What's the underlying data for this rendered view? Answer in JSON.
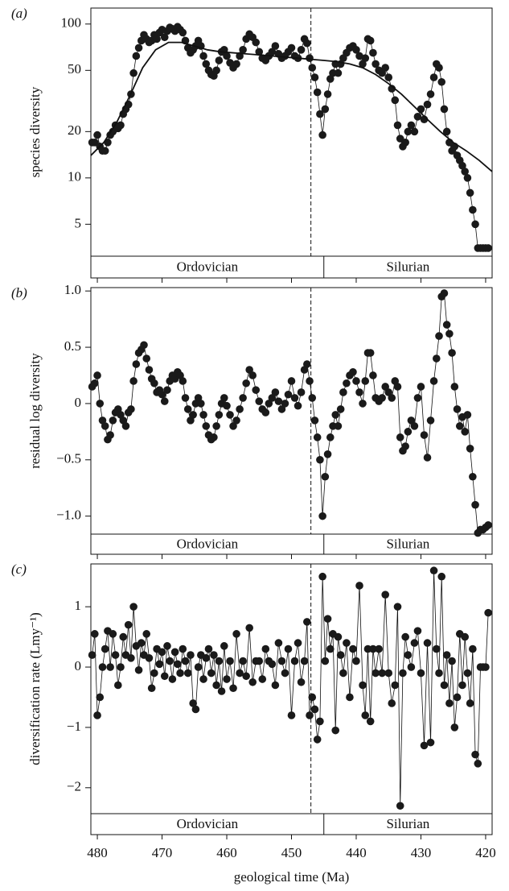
{
  "chart_data": [
    {
      "type": "line",
      "panel_label": "(a)",
      "ylabel": "species diversity",
      "log": true,
      "ylim": [
        3.1,
        127
      ],
      "yticks": [
        5,
        10,
        20,
        50,
        100
      ],
      "xlim": [
        481,
        419
      ],
      "vline": 447,
      "periods": [
        "Ordovician",
        "Silurian"
      ],
      "period_boundary": 445,
      "x": [
        480.8,
        480.4,
        480,
        479.6,
        479.2,
        478.8,
        478.4,
        478,
        477.6,
        477.2,
        476.8,
        476.4,
        476,
        475.6,
        475.2,
        474.8,
        474.4,
        474,
        473.6,
        473.2,
        472.8,
        472.4,
        472,
        471.6,
        471.2,
        470.8,
        470.4,
        470,
        469.6,
        469.2,
        468.8,
        468.4,
        468,
        467.6,
        467.2,
        466.8,
        466.4,
        466,
        465.6,
        465.2,
        464.8,
        464.4,
        464,
        463.6,
        463.2,
        462.8,
        462.4,
        462,
        461.6,
        461.2,
        460.8,
        460.4,
        460,
        459.5,
        459,
        458.5,
        458,
        457.5,
        457,
        456.5,
        456,
        455.5,
        455,
        454.5,
        454,
        453.5,
        453,
        452.5,
        452,
        451.5,
        451,
        450.5,
        450,
        449.5,
        449,
        448.5,
        448,
        447.6,
        447.2,
        446.8,
        446.4,
        446,
        445.6,
        445.2,
        444.8,
        444.4,
        444,
        443.6,
        443.2,
        442.8,
        442.4,
        442,
        441.5,
        441,
        440.5,
        440,
        439.5,
        439,
        438.6,
        438.2,
        437.8,
        437.4,
        437,
        436.5,
        436,
        435.5,
        435,
        434.5,
        434,
        433.6,
        433.2,
        432.8,
        432.4,
        432,
        431.5,
        431,
        430.5,
        430,
        429.5,
        429,
        428.5,
        428,
        427.6,
        427.2,
        426.8,
        426.4,
        426,
        425.6,
        425.2,
        424.8,
        424.4,
        424,
        423.6,
        423.2,
        422.8,
        422.4,
        422,
        421.6,
        421.2,
        420.8,
        420.4,
        420,
        419.6
      ],
      "values": [
        17,
        17,
        19,
        16,
        15,
        15,
        17,
        19,
        20,
        22,
        21,
        22,
        26,
        28,
        30,
        35,
        48,
        62,
        70,
        78,
        85,
        80,
        76,
        78,
        85,
        80,
        88,
        92,
        82,
        90,
        95,
        93,
        90,
        96,
        92,
        88,
        78,
        70,
        65,
        68,
        72,
        78,
        72,
        62,
        55,
        50,
        47,
        46,
        50,
        58,
        66,
        68,
        62,
        56,
        52,
        55,
        62,
        68,
        80,
        86,
        82,
        76,
        66,
        60,
        58,
        62,
        66,
        72,
        64,
        60,
        62,
        66,
        70,
        62,
        60,
        68,
        80,
        75,
        60,
        52,
        45,
        36,
        26,
        19,
        28,
        35,
        44,
        48,
        55,
        48,
        55,
        60,
        65,
        70,
        72,
        68,
        62,
        55,
        60,
        80,
        78,
        65,
        55,
        50,
        48,
        52,
        45,
        38,
        32,
        22,
        18,
        16,
        17,
        20,
        22,
        20,
        25,
        28,
        24,
        30,
        35,
        45,
        55,
        52,
        42,
        28,
        20,
        17,
        15,
        16,
        14,
        13,
        12,
        11,
        10,
        8,
        6.2,
        5,
        3.5,
        3.5,
        3.5,
        3.5,
        3.5
      ],
      "trend": {
        "x": [
          481,
          479,
          477,
          475,
          473,
          471,
          469,
          467,
          465,
          463,
          461,
          459,
          457,
          455,
          453,
          451,
          449,
          447,
          445,
          443,
          441,
          439,
          437,
          435,
          433,
          431,
          429,
          427,
          425,
          423,
          421,
          419
        ],
        "values": [
          14,
          17,
          23,
          34,
          52,
          68,
          76,
          76,
          72,
          68,
          66,
          65,
          64,
          63,
          62,
          61,
          60,
          59,
          58,
          57,
          55,
          52,
          47,
          41,
          35,
          29,
          24,
          20,
          17,
          15,
          13,
          11
        ]
      }
    },
    {
      "type": "line",
      "panel_label": "(b)",
      "ylabel": "residual log diversity",
      "ylim": [
        -1.16,
        1.03
      ],
      "yticks": [
        {
          "value": -1,
          "label": "−1.0"
        },
        {
          "value": -0.5,
          "label": "−0.5"
        },
        0,
        0.5,
        {
          "value": 1,
          "label": "1.0"
        }
      ],
      "xlim": [
        481,
        419
      ],
      "vline": 447,
      "periods": [
        "Ordovician",
        "Silurian"
      ],
      "period_boundary": 445,
      "x": [
        480.8,
        480.4,
        480,
        479.6,
        479.2,
        478.8,
        478.4,
        478,
        477.6,
        477.2,
        476.8,
        476.4,
        476,
        475.6,
        475.2,
        474.8,
        474.4,
        474,
        473.6,
        473.2,
        472.8,
        472.4,
        472,
        471.6,
        471.2,
        470.8,
        470.4,
        470,
        469.6,
        469.2,
        468.8,
        468.4,
        468,
        467.6,
        467.2,
        466.8,
        466.4,
        466,
        465.6,
        465.2,
        464.8,
        464.4,
        464,
        463.6,
        463.2,
        462.8,
        462.4,
        462,
        461.6,
        461.2,
        460.8,
        460.4,
        460,
        459.5,
        459,
        458.5,
        458,
        457.5,
        457,
        456.5,
        456,
        455.5,
        455,
        454.5,
        454,
        453.5,
        453,
        452.5,
        452,
        451.5,
        451,
        450.5,
        450,
        449.5,
        449,
        448.5,
        448,
        447.6,
        447.2,
        446.8,
        446.4,
        446,
        445.6,
        445.2,
        444.8,
        444.4,
        444,
        443.6,
        443.2,
        442.8,
        442.4,
        442,
        441.5,
        441,
        440.5,
        440,
        439.5,
        439,
        438.6,
        438.2,
        437.8,
        437.4,
        437,
        436.5,
        436,
        435.5,
        435,
        434.5,
        434,
        433.6,
        433.2,
        432.8,
        432.4,
        432,
        431.5,
        431,
        430.5,
        430,
        429.5,
        429,
        428.5,
        428,
        427.6,
        427.2,
        426.8,
        426.4,
        426,
        425.6,
        425.2,
        424.8,
        424.4,
        424,
        423.6,
        423.2,
        422.8,
        422.4,
        422,
        421.6,
        421.2,
        420.8,
        420.4,
        420,
        419.6
      ],
      "values": [
        0.15,
        0.18,
        0.25,
        0,
        -0.15,
        -0.2,
        -0.32,
        -0.28,
        -0.15,
        -0.08,
        -0.05,
        -0.1,
        -0.15,
        -0.2,
        -0.08,
        -0.05,
        0.2,
        0.35,
        0.45,
        0.48,
        0.52,
        0.4,
        0.3,
        0.22,
        0.18,
        0.1,
        0.12,
        0.08,
        0.02,
        0.12,
        0.2,
        0.25,
        0.22,
        0.28,
        0.25,
        0.2,
        0.05,
        -0.05,
        -0.15,
        -0.1,
        0,
        0.05,
        0,
        -0.1,
        -0.2,
        -0.28,
        -0.32,
        -0.3,
        -0.2,
        -0.1,
        0,
        0.05,
        -0.02,
        -0.1,
        -0.2,
        -0.15,
        -0.05,
        0.05,
        0.18,
        0.3,
        0.25,
        0.12,
        0.02,
        -0.05,
        -0.08,
        0,
        0.05,
        0.1,
        0.02,
        -0.05,
        0,
        0.08,
        0.2,
        0.05,
        -0.02,
        0.1,
        0.3,
        0.35,
        0.2,
        0.05,
        -0.15,
        -0.3,
        -0.5,
        -1.0,
        -0.65,
        -0.45,
        -0.3,
        -0.2,
        -0.1,
        -0.2,
        -0.05,
        0.1,
        0.18,
        0.25,
        0.28,
        0.2,
        0.1,
        0,
        0.2,
        0.45,
        0.45,
        0.25,
        0.05,
        0.02,
        0.05,
        0.15,
        0.1,
        0.05,
        0.2,
        0.15,
        -0.3,
        -0.42,
        -0.38,
        -0.25,
        -0.15,
        -0.2,
        0.05,
        0.15,
        -0.28,
        -0.48,
        -0.15,
        0.2,
        0.4,
        0.6,
        0.95,
        0.98,
        0.7,
        0.62,
        0.45,
        0.15,
        -0.05,
        -0.2,
        -0.12,
        -0.25,
        -0.1,
        -0.4,
        -0.65,
        -0.9,
        -1.15,
        -1.12,
        -1.12,
        -1.1,
        -1.08
      ]
    },
    {
      "type": "line",
      "panel_label": "(c)",
      "ylabel": "diversification rate (Lmy⁻¹)",
      "xlabel": "geological time (Ma)",
      "ylim": [
        -2.43,
        1.71
      ],
      "yticks": [
        {
          "value": -2,
          "label": "−2"
        },
        {
          "value": -1,
          "label": "−1"
        },
        0,
        1
      ],
      "xlim": [
        481,
        419
      ],
      "xticks": [
        480,
        470,
        460,
        450,
        440,
        430,
        420
      ],
      "vline": 447,
      "periods": [
        "Ordovician",
        "Silurian"
      ],
      "period_boundary": 445,
      "x": [
        480.8,
        480.4,
        480,
        479.6,
        479.2,
        478.8,
        478.4,
        478,
        477.6,
        477.2,
        476.8,
        476.4,
        476,
        475.6,
        475.2,
        474.8,
        474.4,
        474,
        473.6,
        473.2,
        472.8,
        472.4,
        472,
        471.6,
        471.2,
        470.8,
        470.4,
        470,
        469.6,
        469.2,
        468.8,
        468.4,
        468,
        467.6,
        467.2,
        466.8,
        466.4,
        466,
        465.6,
        465.2,
        464.8,
        464.4,
        464,
        463.6,
        463.2,
        462.8,
        462.4,
        462,
        461.6,
        461.2,
        460.8,
        460.4,
        460,
        459.5,
        459,
        458.5,
        458,
        457.5,
        457,
        456.5,
        456,
        455.5,
        455,
        454.5,
        454,
        453.5,
        453,
        452.5,
        452,
        451.5,
        451,
        450.5,
        450,
        449.5,
        449,
        448.5,
        448,
        447.6,
        447.2,
        446.8,
        446.4,
        446,
        445.6,
        445.2,
        444.8,
        444.4,
        444,
        443.6,
        443.2,
        442.8,
        442.4,
        442,
        441.5,
        441,
        440.5,
        440,
        439.5,
        439,
        438.6,
        438.2,
        437.8,
        437.4,
        437,
        436.5,
        436,
        435.5,
        435,
        434.5,
        434,
        433.6,
        433.2,
        432.8,
        432.4,
        432,
        431.5,
        431,
        430.5,
        430,
        429.5,
        429,
        428.5,
        428,
        427.6,
        427.2,
        426.8,
        426.4,
        426,
        425.6,
        425.2,
        424.8,
        424.4,
        424,
        423.6,
        423.2,
        422.8,
        422.4,
        422,
        421.6,
        421.2,
        420.8,
        420.4,
        420,
        419.6
      ],
      "values": [
        0.2,
        0.55,
        -0.8,
        -0.5,
        0,
        0.3,
        0.6,
        0,
        0.55,
        0.2,
        -0.3,
        0,
        0.5,
        0.2,
        0.7,
        0.15,
        1.0,
        0.35,
        -0.05,
        0.4,
        0.2,
        0.55,
        0.15,
        -0.35,
        -0.1,
        0.3,
        0.05,
        0.25,
        -0.15,
        0.35,
        0.1,
        -0.2,
        0.25,
        0.05,
        -0.1,
        0.3,
        0.1,
        -0.1,
        0.2,
        -0.6,
        -0.7,
        0,
        0.2,
        -0.2,
        0.15,
        0.3,
        -0.1,
        0.2,
        -0.3,
        0.1,
        -0.4,
        0.35,
        -0.2,
        0.1,
        -0.35,
        0.55,
        -0.1,
        0.1,
        -0.15,
        0.65,
        -0.25,
        0.1,
        0.1,
        -0.2,
        0.3,
        0.1,
        0.05,
        -0.3,
        0.4,
        0.1,
        -0.1,
        0.3,
        -0.8,
        0.1,
        0.4,
        -0.25,
        0.1,
        0.75,
        -0.8,
        -0.5,
        -0.7,
        -1.2,
        -0.9,
        1.5,
        0.1,
        0.8,
        0.3,
        0.55,
        -1.05,
        0.5,
        0.2,
        -0.1,
        0.4,
        -0.5,
        0.3,
        0.1,
        1.35,
        -0.3,
        -0.8,
        0.3,
        -0.9,
        0.3,
        -0.1,
        0.3,
        -0.1,
        1.2,
        -0.1,
        -0.6,
        -0.3,
        1.0,
        -2.3,
        -0.1,
        0.5,
        0.2,
        0,
        0.4,
        0.6,
        -0.1,
        -1.3,
        0.4,
        -1.25,
        1.6,
        0.3,
        -0.1,
        1.5,
        -0.3,
        0.2,
        -0.6,
        0.1,
        -1.0,
        -0.5,
        0.55,
        -0.3,
        0.5,
        -0.1,
        -0.6,
        0.3,
        -1.45,
        -1.6,
        0,
        0,
        0,
        0.9
      ]
    }
  ]
}
